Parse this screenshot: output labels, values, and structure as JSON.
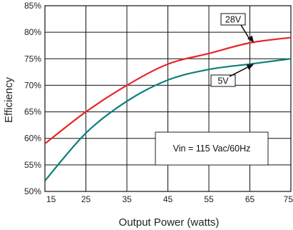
{
  "chart_data": {
    "type": "line",
    "xlabel": "Output Power (watts)",
    "ylabel": "Efficiency",
    "xlim": [
      15,
      75
    ],
    "ylim": [
      50,
      85
    ],
    "x_ticks": [
      "15",
      "25",
      "35",
      "45",
      "55",
      "65",
      "75"
    ],
    "y_ticks": [
      "50%",
      "55%",
      "60%",
      "65%",
      "70%",
      "75%",
      "80%",
      "85%"
    ],
    "grid": true,
    "series": [
      {
        "name": "28V",
        "color": "#e8262b",
        "x": [
          15,
          25,
          35,
          45,
          55,
          65,
          75
        ],
        "y": [
          59,
          65,
          70,
          74,
          76,
          78,
          79
        ]
      },
      {
        "name": "5V",
        "color": "#0d7f7a",
        "x": [
          15,
          25,
          35,
          45,
          55,
          65,
          75
        ],
        "y": [
          52,
          61,
          67,
          71,
          73,
          74,
          75
        ]
      }
    ],
    "annotation": "Vin = 115 Vac/60Hz"
  }
}
